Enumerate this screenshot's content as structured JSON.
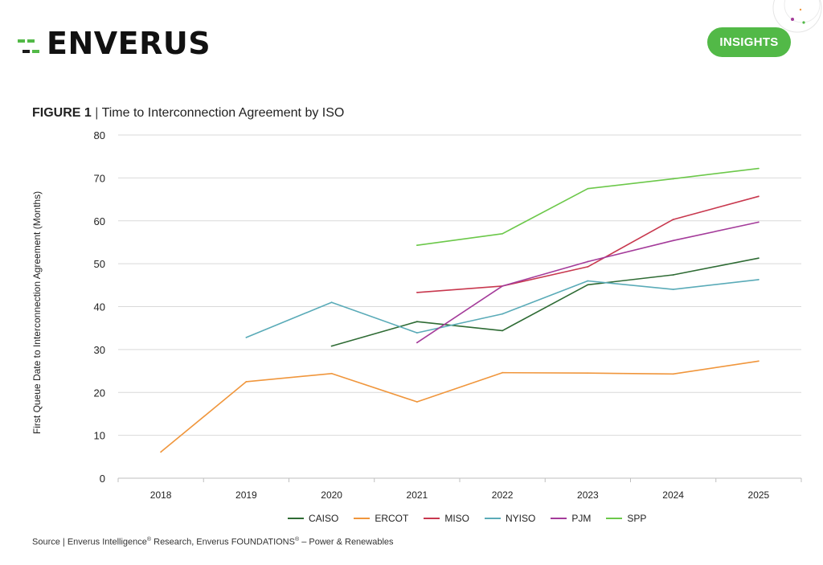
{
  "header": {
    "logo_text": "ENVERUS",
    "insights_label": "INSIGHTS"
  },
  "figure": {
    "label": "FIGURE 1",
    "separator": "|",
    "title": "Time to Interconnection Agreement by ISO"
  },
  "source": {
    "prefix": "Source | Enverus Intelligence",
    "reg1": "®",
    "middle": " Research, Enverus FOUNDATIONS",
    "reg2": "®",
    "suffix": " – Power & Renewables"
  },
  "colors": {
    "brand_green": "#52b947",
    "grid": "#d9d9d9",
    "axis": "#bfbfbf"
  },
  "chart_data": {
    "type": "line",
    "title": "Time to Interconnection Agreement by ISO",
    "xlabel": "",
    "ylabel": "First Queue Date to Interconnection Agreement (Months)",
    "ylim": [
      0,
      80
    ],
    "yticks": [
      "0",
      "10",
      "20",
      "30",
      "40",
      "50",
      "60",
      "70",
      "80"
    ],
    "categories": [
      "2018",
      "2019",
      "2020",
      "2021",
      "2022",
      "2023",
      "2024",
      "2025"
    ],
    "grid": true,
    "legend_position": "bottom",
    "series": [
      {
        "name": "CAISO",
        "color": "#2e6b34",
        "values": [
          null,
          null,
          30.8,
          36.5,
          34.4,
          45.1,
          47.4,
          51.3
        ]
      },
      {
        "name": "ERCOT",
        "color": "#f0963c",
        "values": [
          6.1,
          22.5,
          24.4,
          17.8,
          24.6,
          24.5,
          24.3,
          27.3
        ]
      },
      {
        "name": "MISO",
        "color": "#c8384e",
        "values": [
          null,
          null,
          null,
          43.3,
          44.8,
          49.3,
          60.3,
          65.7
        ]
      },
      {
        "name": "NYISO",
        "color": "#5aabb8",
        "values": [
          null,
          32.8,
          41.0,
          33.9,
          38.3,
          46.0,
          44.0,
          46.3
        ]
      },
      {
        "name": "PJM",
        "color": "#a43b9a",
        "values": [
          null,
          null,
          null,
          31.6,
          44.8,
          50.5,
          55.4,
          59.7
        ]
      },
      {
        "name": "SPP",
        "color": "#6cc84a",
        "values": [
          null,
          null,
          null,
          54.3,
          57.0,
          67.5,
          69.8,
          72.2
        ]
      }
    ]
  }
}
